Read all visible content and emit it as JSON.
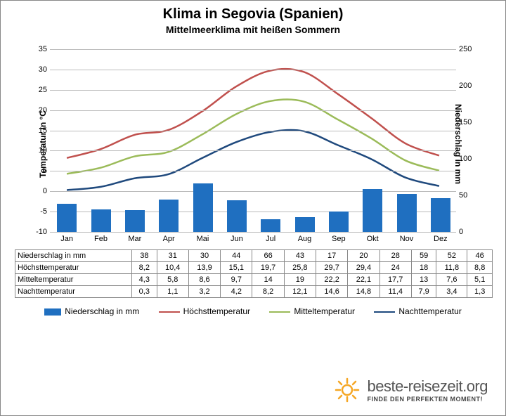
{
  "title": "Klima in Segovia (Spanien)",
  "subtitle": "Mittelmeerklima mit heißen Sommern",
  "axes": {
    "left_label": "Temperatur in °C",
    "right_label": "Niederschlag in mm",
    "left_min": -10,
    "left_max": 35,
    "left_step": 5,
    "right_min": 0,
    "right_max": 250,
    "right_step": 50,
    "months": [
      "Jan",
      "Feb",
      "Mar",
      "Apr",
      "Mai",
      "Jun",
      "Jul",
      "Aug",
      "Sep",
      "Okt",
      "Nov",
      "Dez"
    ]
  },
  "series": {
    "precip": {
      "label": "Niederschlag in mm",
      "color": "#1f6fc0",
      "values": [
        38,
        31,
        30,
        44,
        66,
        43,
        17,
        20,
        28,
        59,
        52,
        46
      ]
    },
    "high": {
      "label": "Höchsttemperatur",
      "color": "#c0504d",
      "values": [
        8.2,
        10.4,
        13.9,
        15.1,
        19.7,
        25.8,
        29.7,
        29.4,
        24.0,
        18.0,
        11.8,
        8.8
      ]
    },
    "mean": {
      "label": "Mitteltemperatur",
      "color": "#9bbb59",
      "values": [
        4.3,
        5.8,
        8.6,
        9.7,
        14.0,
        19.0,
        22.2,
        22.1,
        17.7,
        13.0,
        7.6,
        5.1
      ]
    },
    "night": {
      "label": "Nachttemperatur",
      "color": "#1f497d",
      "values": [
        0.3,
        1.1,
        3.2,
        4.2,
        8.2,
        12.1,
        14.6,
        14.8,
        11.4,
        7.9,
        3.4,
        1.3
      ]
    }
  },
  "table_rows": [
    "precip",
    "high",
    "mean",
    "night"
  ],
  "footer": {
    "brand": "beste-reisezeit.org",
    "tagline": "FINDE DEN PERFEKTEN MOMENT!"
  },
  "colors": {
    "grid": "#bbb",
    "bg": "#ffffff",
    "sun": "#f5a623"
  }
}
